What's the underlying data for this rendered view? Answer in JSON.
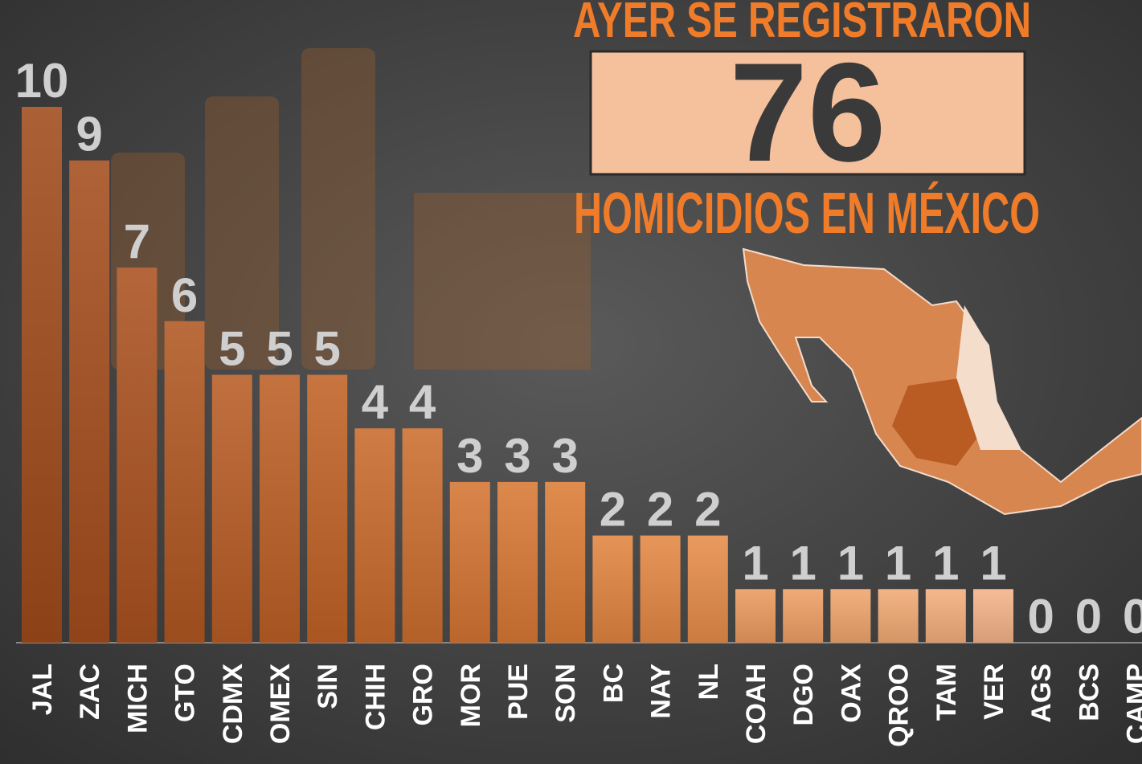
{
  "chart_data": {
    "type": "bar",
    "title": "AYER SE REGISTRARON",
    "headline": "76",
    "subtitle": "HOMICIDIOS EN MÉXICO",
    "categories": [
      "JAL",
      "ZAC",
      "MICH",
      "GTO",
      "CDMX",
      "OMEX",
      "SIN",
      "CHIH",
      "GRO",
      "MOR",
      "PUE",
      "SON",
      "BC",
      "NAY",
      "NL",
      "COAH",
      "DGO",
      "OAX",
      "QROO",
      "TAM",
      "VER",
      "AGS",
      "BCS",
      "CAMP"
    ],
    "values": [
      10,
      9,
      7,
      6,
      5,
      5,
      5,
      4,
      4,
      3,
      3,
      3,
      2,
      2,
      2,
      1,
      1,
      1,
      1,
      1,
      1,
      0,
      0,
      0
    ],
    "colors": [
      "#a04a1a",
      "#a44d1c",
      "#aa5220",
      "#b05722",
      "#b85c24",
      "#bc5f25",
      "#c06226",
      "#c86a2c",
      "#cc6e2e",
      "#d47432",
      "#d87834",
      "#dc7c36",
      "#e28440",
      "#e48844",
      "#e68c48",
      "#ec9a5e",
      "#ee9f65",
      "#f0a56d",
      "#f2aa74",
      "#f3ae7c",
      "#f4b38a",
      "#f5b890",
      "#f5bc96",
      "#f6c09c"
    ],
    "ylim": [
      0,
      10
    ]
  }
}
